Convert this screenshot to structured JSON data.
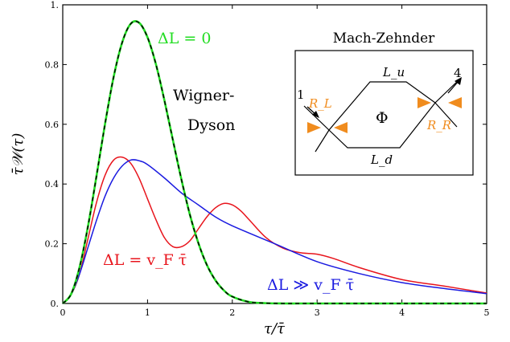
{
  "chart_data": {
    "type": "line",
    "xlabel": "τ/τ̄",
    "ylabel": "τ̄𝒲(τ)",
    "xlim": [
      0,
      5
    ],
    "ylim": [
      0,
      1
    ],
    "x_ticks": [
      "0",
      "1",
      "2",
      "3",
      "4",
      "5"
    ],
    "y_ticks": [
      "0.",
      "0.2",
      "0.4",
      "0.6",
      "0.8",
      "1."
    ],
    "grid": false,
    "series": [
      {
        "name": "ΔL = 0",
        "color": "#22dd22",
        "x": [
          0,
          0.1,
          0.2,
          0.3,
          0.4,
          0.5,
          0.6,
          0.7,
          0.8,
          0.9,
          1.0,
          1.1,
          1.2,
          1.3,
          1.4,
          1.5,
          1.6,
          1.7,
          1.8,
          1.9,
          2.0,
          2.2,
          2.4,
          2.6,
          2.8,
          3.0,
          3.5,
          4.0,
          5.0
        ],
        "y": [
          0,
          0.032,
          0.123,
          0.262,
          0.43,
          0.603,
          0.758,
          0.873,
          0.936,
          0.94,
          0.891,
          0.8,
          0.679,
          0.546,
          0.415,
          0.297,
          0.202,
          0.129,
          0.078,
          0.044,
          0.023,
          0.005,
          0.001,
          0,
          0,
          0,
          0,
          0,
          0
        ]
      },
      {
        "name": "Wigner-Dyson",
        "color": "#000000",
        "x": [
          0,
          0.1,
          0.2,
          0.3,
          0.4,
          0.5,
          0.6,
          0.7,
          0.8,
          0.9,
          1.0,
          1.1,
          1.2,
          1.3,
          1.4,
          1.5,
          1.6,
          1.7,
          1.8,
          1.9,
          2.0,
          2.2,
          2.4,
          2.6,
          2.8,
          3.0,
          3.5,
          4.0,
          5.0
        ],
        "y": [
          0,
          0.032,
          0.123,
          0.262,
          0.43,
          0.603,
          0.758,
          0.873,
          0.936,
          0.94,
          0.891,
          0.8,
          0.679,
          0.546,
          0.415,
          0.297,
          0.202,
          0.129,
          0.078,
          0.044,
          0.023,
          0.005,
          0.001,
          0,
          0,
          0,
          0,
          0,
          0
        ]
      },
      {
        "name": "ΔL = v_F τ̄",
        "color": "#e8141c",
        "x": [
          0,
          0.1,
          0.2,
          0.3,
          0.4,
          0.5,
          0.6,
          0.7,
          0.8,
          0.9,
          1.0,
          1.1,
          1.2,
          1.3,
          1.4,
          1.5,
          1.6,
          1.7,
          1.8,
          1.9,
          2.0,
          2.1,
          2.2,
          2.4,
          2.6,
          2.8,
          3.0,
          3.2,
          3.5,
          4.0,
          4.5,
          5.0
        ],
        "y": [
          0,
          0.03,
          0.1,
          0.22,
          0.34,
          0.43,
          0.48,
          0.49,
          0.47,
          0.42,
          0.35,
          0.28,
          0.22,
          0.19,
          0.19,
          0.21,
          0.25,
          0.29,
          0.32,
          0.335,
          0.33,
          0.31,
          0.28,
          0.22,
          0.185,
          0.17,
          0.165,
          0.15,
          0.12,
          0.08,
          0.058,
          0.035
        ]
      },
      {
        "name": "ΔL ≫ v_F τ̄",
        "color": "#1a1ae0",
        "x": [
          0,
          0.1,
          0.2,
          0.3,
          0.4,
          0.5,
          0.6,
          0.7,
          0.8,
          0.9,
          1.0,
          1.2,
          1.4,
          1.6,
          1.8,
          2.0,
          2.5,
          3.0,
          3.5,
          4.0,
          4.5,
          5.0
        ],
        "y": [
          0,
          0.03,
          0.1,
          0.19,
          0.28,
          0.36,
          0.42,
          0.46,
          0.48,
          0.478,
          0.465,
          0.42,
          0.37,
          0.33,
          0.29,
          0.26,
          0.2,
          0.14,
          0.1,
          0.07,
          0.05,
          0.033
        ]
      }
    ],
    "annotations": {
      "green": "ΔL = 0",
      "wigner_line1": "Wigner-",
      "wigner_line2": "Dyson",
      "red": "ΔL = v_F τ̄",
      "blue": "ΔL ≫ v_F τ̄"
    },
    "inset": {
      "title": "Mach-Zehnder",
      "upper_arm": "L_u",
      "lower_arm": "L_d",
      "flux": "Φ",
      "left_qpc": "R_L",
      "right_qpc": "R_R",
      "in_port": "1",
      "out_port": "4",
      "qpc_color": "#f08c1e"
    }
  }
}
